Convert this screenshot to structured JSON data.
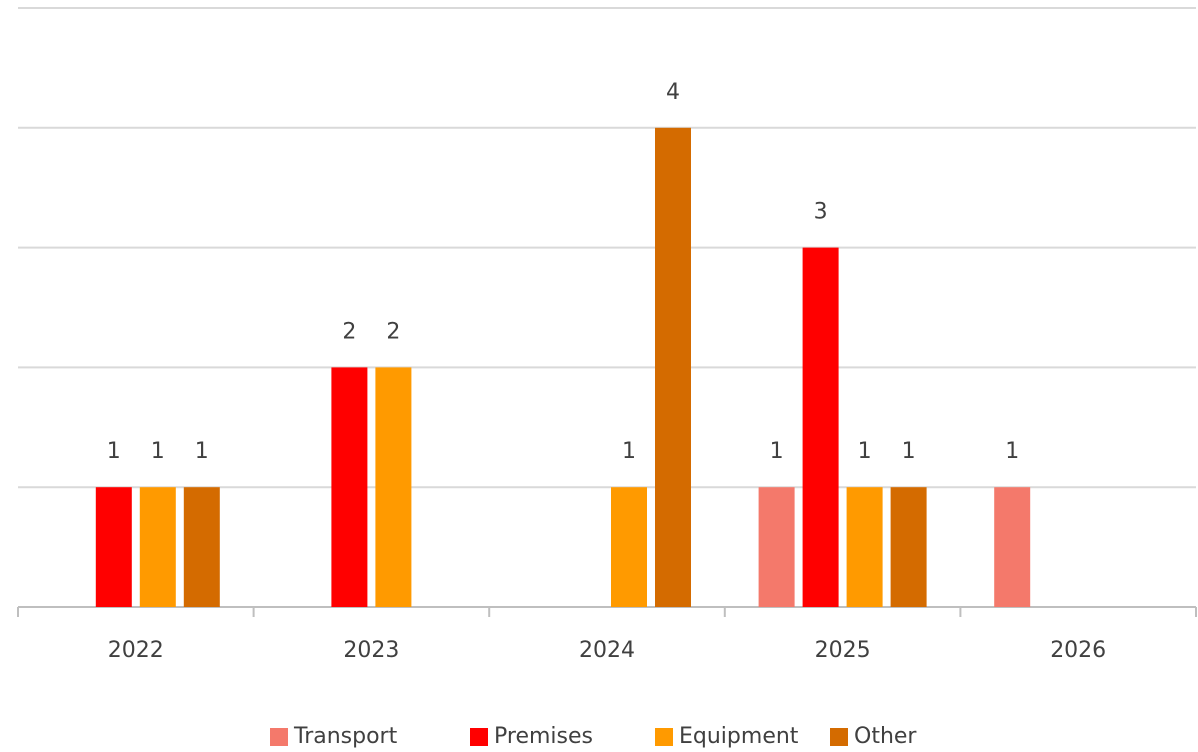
{
  "chart_data": {
    "type": "bar",
    "categories": [
      "2022",
      "2023",
      "2024",
      "2025",
      "2026"
    ],
    "series": [
      {
        "name": "Transport",
        "color": "#f4796b",
        "values": [
          null,
          null,
          null,
          1,
          1
        ]
      },
      {
        "name": "Premises",
        "color": "#ff0000",
        "values": [
          1,
          2,
          null,
          3,
          null
        ]
      },
      {
        "name": "Equipment",
        "color": "#ff9a00",
        "values": [
          1,
          2,
          1,
          1,
          null
        ]
      },
      {
        "name": "Other",
        "color": "#d46b00",
        "values": [
          1,
          null,
          4,
          1,
          null
        ]
      }
    ],
    "ylim": [
      0,
      5
    ],
    "yticks": [
      0,
      1,
      2,
      3,
      4,
      5
    ],
    "grid": true,
    "legend": "bottom"
  }
}
